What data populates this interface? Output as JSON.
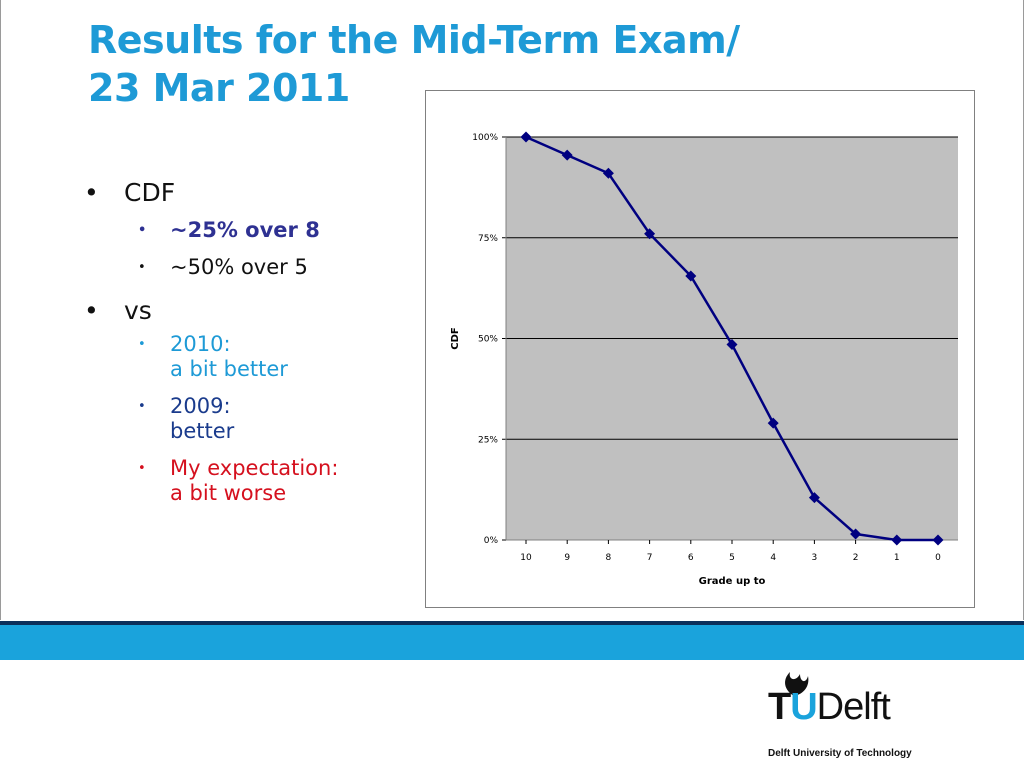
{
  "slide": {
    "title_line1": "Results for the Mid-Term Exam/",
    "title_line2": "23 Mar 2011",
    "bullets": [
      {
        "text": "CDF"
      },
      {
        "text": "~25% over 8"
      },
      {
        "text": "~50% over 5"
      },
      {
        "text": "vs"
      },
      {
        "line1": "2010:",
        "line2": "a bit better"
      },
      {
        "line1": "2009:",
        "line2": "better"
      },
      {
        "line1": "My expectation:",
        "line2": "a bit worse"
      }
    ],
    "bullet_glyph": "•"
  },
  "colors": {
    "title": "#1e9ad6",
    "bold_bullet": "#2e3192",
    "blue_bullet": "#1e9ad6",
    "navy_bullet": "#1a3b8c",
    "red_bullet": "#d5101e",
    "plot_bg": "#c0c0c0",
    "series": "#000080",
    "band": "#1aa3dc"
  },
  "chart_data": {
    "type": "line",
    "categories": [
      "10",
      "9",
      "8",
      "7",
      "6",
      "5",
      "4",
      "3",
      "2",
      "1",
      "0"
    ],
    "series": [
      {
        "values": [
          1.0,
          0.955,
          0.91,
          0.76,
          0.655,
          0.485,
          0.29,
          0.105,
          0.015,
          0.0,
          0.0
        ]
      }
    ],
    "xlabel": "Grade up to",
    "ylabel": "CDF",
    "ylim": [
      0,
      1
    ],
    "yticks": [
      "0%",
      "25%",
      "50%",
      "75%",
      "100%"
    ],
    "grid": true,
    "legend": "none",
    "marker": "diamond"
  },
  "logo": {
    "t": "T",
    "u": "U",
    "delft": "Delft",
    "subtitle": "Delft University of Technology"
  }
}
